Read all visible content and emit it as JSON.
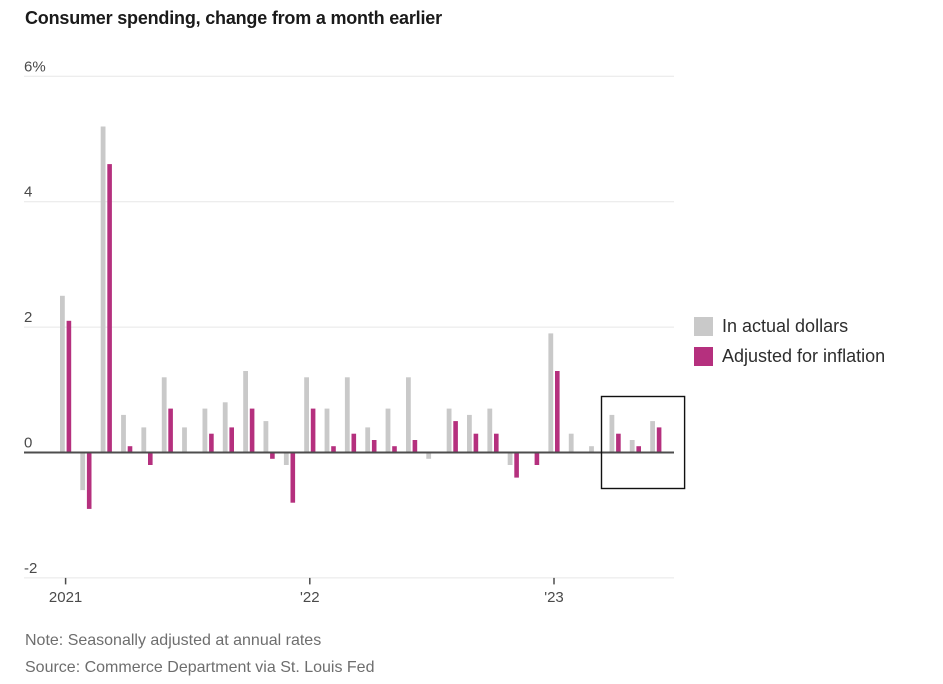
{
  "chart_data": {
    "type": "bar",
    "title": "Consumer spending, change from a month earlier",
    "unit": "percent",
    "grid": "horizontal",
    "legend_position": "right",
    "ylim": [
      -2.7,
      6.3
    ],
    "x": [
      "Jan 2021",
      "Feb 2021",
      "Mar 2021",
      "Apr 2021",
      "May 2021",
      "Jun 2021",
      "Jul 2021",
      "Aug 2021",
      "Sep 2021",
      "Oct 2021",
      "Nov 2021",
      "Dec 2021",
      "Jan 2022",
      "Feb 2022",
      "Mar 2022",
      "Apr 2022",
      "May 2022",
      "Jun 2022",
      "Jul 2022",
      "Aug 2022",
      "Sep 2022",
      "Oct 2022",
      "Nov 2022",
      "Dec 2022",
      "Jan 2023",
      "Feb 2023",
      "Mar 2023",
      "Apr 2023",
      "May 2023",
      "Jun 2023"
    ],
    "series": [
      {
        "name": "In actual dollars",
        "color": "#c9c9c9",
        "values": [
          2.5,
          -0.6,
          5.2,
          0.6,
          0.4,
          1.2,
          0.4,
          0.7,
          0.8,
          1.3,
          0.5,
          -0.2,
          1.2,
          0.7,
          1.2,
          0.4,
          0.7,
          1.2,
          -0.1,
          0.7,
          0.6,
          0.7,
          -0.2,
          0.0,
          1.9,
          0.3,
          0.1,
          0.6,
          0.2,
          0.5
        ]
      },
      {
        "name": "Adjusted for inflation",
        "color": "#b5307e",
        "values": [
          2.1,
          -0.9,
          4.6,
          0.1,
          -0.2,
          0.7,
          0.0,
          0.3,
          0.4,
          0.7,
          -0.1,
          -0.8,
          0.7,
          0.1,
          0.3,
          0.2,
          0.1,
          0.2,
          0.0,
          0.5,
          0.3,
          0.3,
          -0.4,
          -0.2,
          1.3,
          0.0,
          0.0,
          0.3,
          0.1,
          0.4
        ]
      }
    ],
    "yticks": [
      {
        "label": "6%",
        "value": 6
      },
      {
        "label": "4",
        "value": 4
      },
      {
        "label": "2",
        "value": 2
      },
      {
        "label": "0",
        "value": 0
      },
      {
        "label": "-2",
        "value": -2
      }
    ],
    "xticks": [
      {
        "label": "2021",
        "monthIndex": 0
      },
      {
        "label": "'22",
        "monthIndex": 12
      },
      {
        "label": "'23",
        "monthIndex": 24
      }
    ],
    "highlight_box": {
      "fromMonthIndex": 27,
      "toMonthIndex": 29
    }
  },
  "note": "Note: Seasonally adjusted at annual rates",
  "source": "Source: Commerce Department via St. Louis Fed",
  "colors": {
    "gridline": "#e7e7e7",
    "zero_line": "#4d4d4d",
    "axis_text": "#4a4a4a",
    "muted_text": "#6e6e6e",
    "title_text": "#1a1a1a",
    "highlight_box_border": "#111111"
  }
}
